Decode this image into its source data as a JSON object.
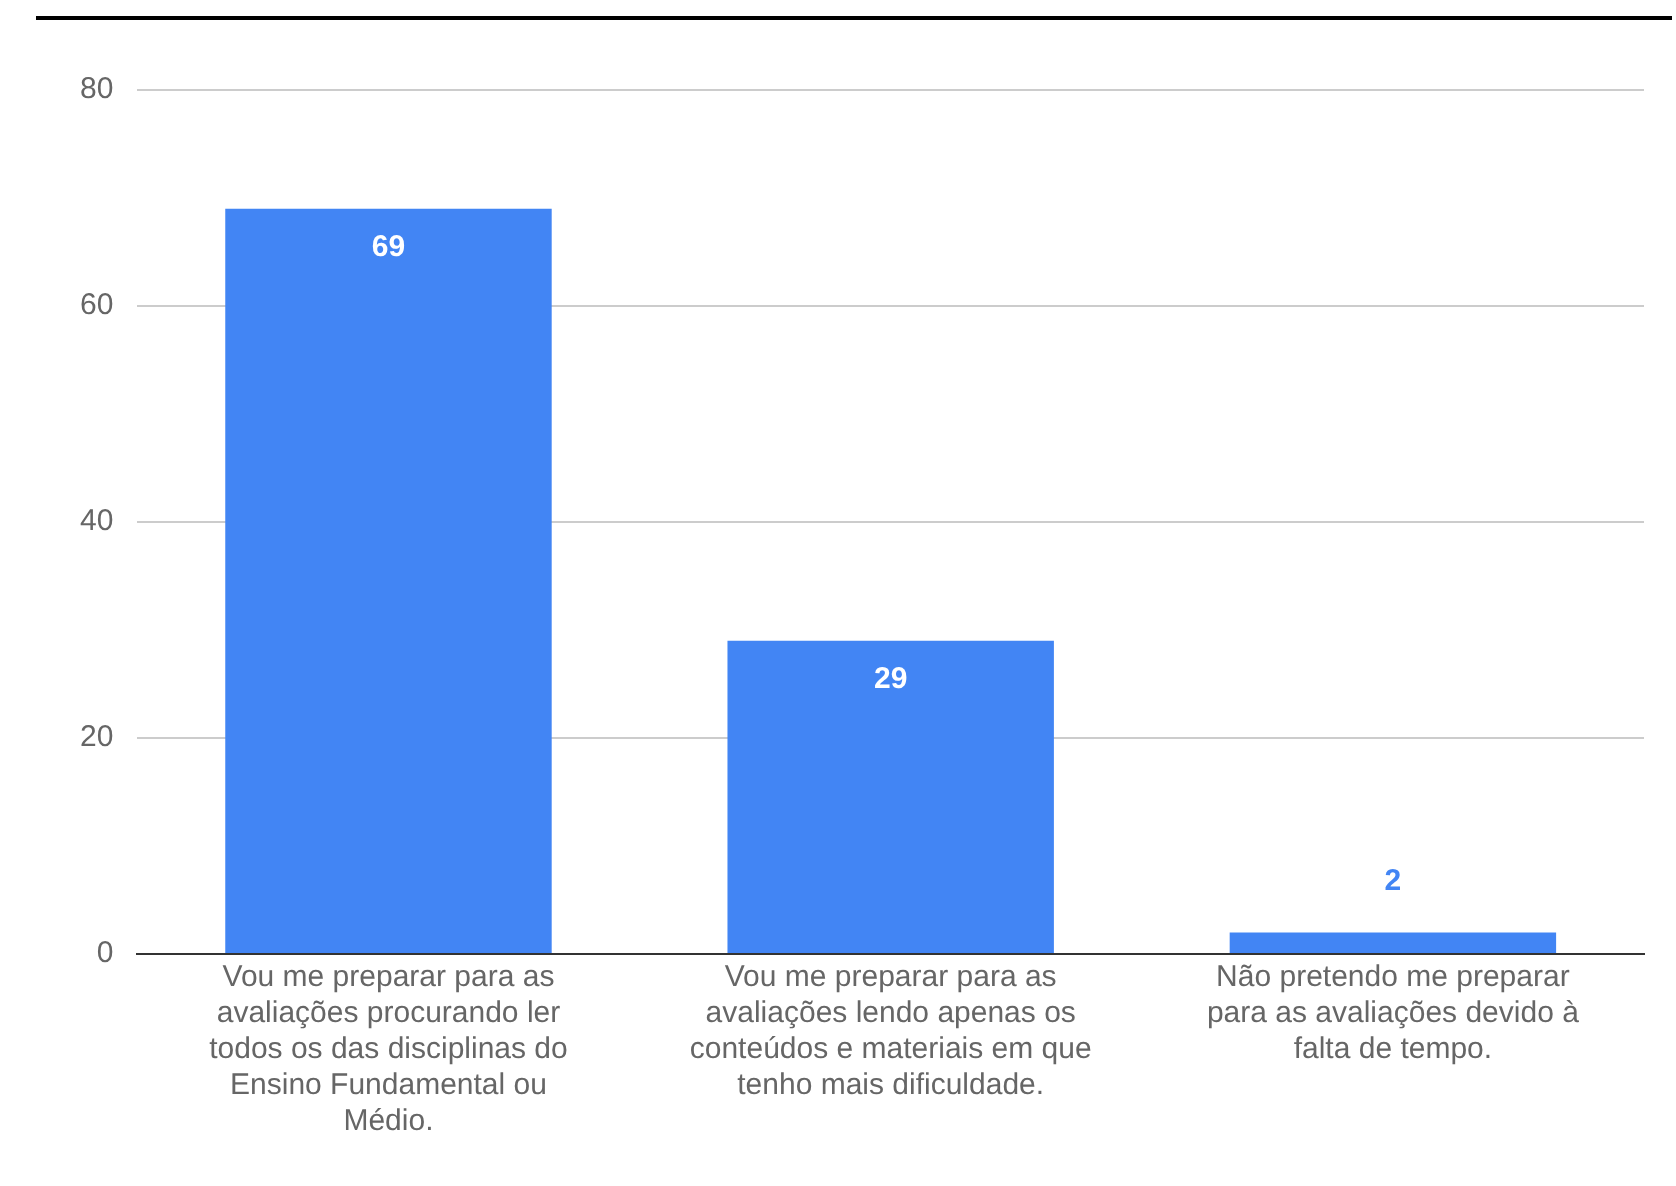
{
  "chart_data": {
    "type": "bar",
    "categories": [
      "Vou me preparar para as avaliações procurando ler todos os das disciplinas do Ensino Fundamental ou Médio.",
      "Vou me preparar para as avaliações lendo apenas os conteúdos e materiais em que tenho mais dificuldade.",
      "Não pretendo me preparar para as avaliações devido à falta de tempo."
    ],
    "values": [
      69,
      29,
      2
    ],
    "color": "#4285f4",
    "ylim": [
      0,
      80
    ],
    "yticks": [
      0,
      20,
      40,
      60,
      80
    ],
    "grid": "y",
    "legend": false,
    "data_labels": true
  }
}
